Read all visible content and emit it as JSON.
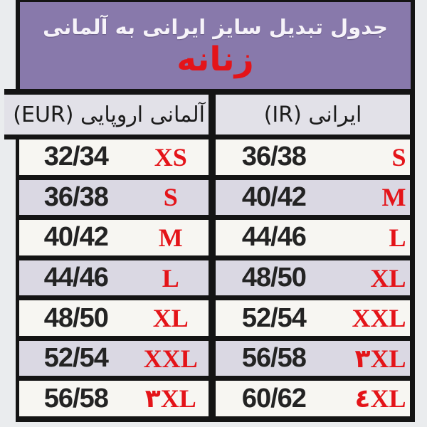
{
  "window": {
    "background": "#eaecee"
  },
  "banner": {
    "title": "جدول تبدیل سایز ایرانی به آلمانی",
    "gender_label": "زنانه",
    "bg_color": "#8879ab",
    "title_color": "#f6f3f9",
    "gender_color": "#e41419"
  },
  "table": {
    "columns": {
      "german": "آلمانی اروپایی (EUR)",
      "iranian": "ایرانی (IR)"
    },
    "colors": {
      "header_bg": "#e2e1e8",
      "row_light": "#f7f6f2",
      "row_lavender": "#dad8e3",
      "border": "#141414",
      "accent_red": "#e41419",
      "number_text": "#232323"
    },
    "rows": [
      {
        "de_size": "32/34",
        "de_label": "XS",
        "ir_size": "36/38",
        "ir_label": "S"
      },
      {
        "de_size": "36/38",
        "de_label": "S",
        "ir_size": "40/42",
        "ir_label": "M"
      },
      {
        "de_size": "40/42",
        "de_label": "M",
        "ir_size": "44/46",
        "ir_label": "L"
      },
      {
        "de_size": "44/46",
        "de_label": "L",
        "ir_size": "48/50",
        "ir_label": "XL"
      },
      {
        "de_size": "48/50",
        "de_label": "XL",
        "ir_size": "52/54",
        "ir_label": "XXL"
      },
      {
        "de_size": "52/54",
        "de_label": "XXL",
        "ir_size": "56/58",
        "ir_label": "۳XL"
      },
      {
        "de_size": "56/58",
        "de_label": "۳XL",
        "ir_size": "60/62",
        "ir_label": "٤XL"
      }
    ]
  },
  "chart_data": {
    "type": "table",
    "title": "جدول تبدیل سایز ایرانی به آلمانی",
    "subtitle": "زنانه",
    "columns": [
      "آلمانی اروپایی (EUR)",
      "ایرانی (IR)"
    ],
    "rows": [
      [
        "32/34 XS",
        "36/38 S"
      ],
      [
        "36/38 S",
        "40/42 M"
      ],
      [
        "40/42 M",
        "44/46 L"
      ],
      [
        "44/46 L",
        "48/50 XL"
      ],
      [
        "48/50 XL",
        "52/54 XXL"
      ],
      [
        "52/54 XXL",
        "56/58 ۳XL"
      ],
      [
        "56/58 ۳XL",
        "60/62 ٤XL"
      ]
    ]
  }
}
